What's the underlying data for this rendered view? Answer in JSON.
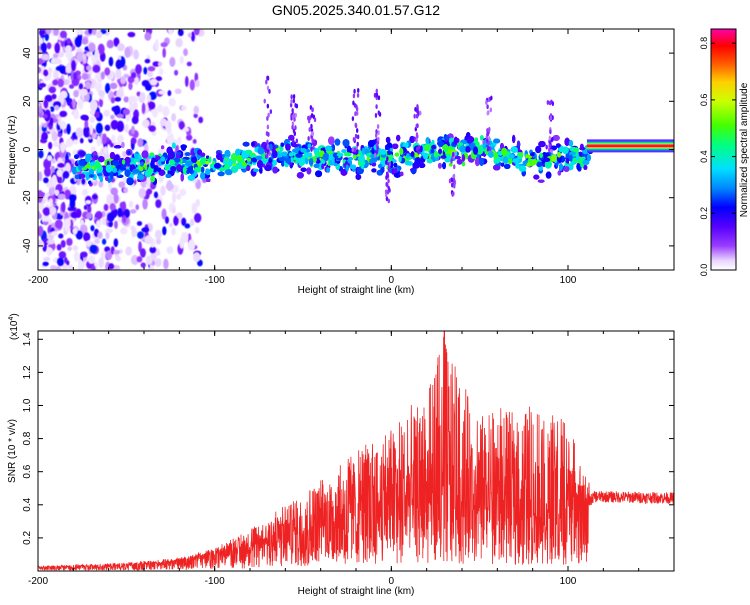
{
  "title": "GN05.2025.340.01.57.G12",
  "chart_data": [
    {
      "type": "heatmap",
      "title": "GN05.2025.340.01.57.G12",
      "xlabel": "Height of straight line (km)",
      "ylabel": "Frequency (Hz)",
      "xlim": [
        -200,
        160
      ],
      "ylim": [
        -50,
        50
      ],
      "x_ticks": [
        -200,
        -100,
        0,
        100
      ],
      "x_tick_labels": [
        "-200",
        "-100",
        "0",
        "100"
      ],
      "y_ticks": [
        -40,
        -20,
        0,
        20,
        40
      ],
      "y_tick_labels": [
        "-40",
        "-20",
        "0",
        "20",
        "40"
      ],
      "colorbar": {
        "label": "Normalized spectral amplitude",
        "range": [
          0,
          0.85
        ],
        "ticks": [
          0.0,
          0.2,
          0.4,
          0.6,
          0.8
        ],
        "tick_labels": [
          "0.0",
          "0.2",
          "0.4",
          "0.6",
          "0.8"
        ],
        "colormap": "rainbow (white-violet-blue-cyan-green-yellow-red-magenta)"
      },
      "features": {
        "scatter_noise_region_km": [
          -200,
          -120
        ],
        "main_band_center_hz": [
          [
            -175,
            -8
          ],
          [
            -150,
            -7
          ],
          [
            -120,
            -6
          ],
          [
            -100,
            -7
          ],
          [
            -80,
            -4
          ],
          [
            -60,
            -2
          ],
          [
            -40,
            -3
          ],
          [
            -20,
            -3
          ],
          [
            0,
            -3
          ],
          [
            20,
            -1
          ],
          [
            40,
            0
          ],
          [
            50,
            2
          ],
          [
            60,
            -3
          ],
          [
            80,
            -4
          ],
          [
            100,
            -3
          ],
          [
            110,
            -2
          ],
          [
            115,
            1.5
          ],
          [
            160,
            1.5
          ]
        ],
        "band_halfwidth_hz": 7,
        "steady_line_start_km": 113,
        "steady_line_freq_hz": 1.5
      }
    },
    {
      "type": "line",
      "xlabel": "Height of straight line (km)",
      "ylabel": "SNR (10 * v/v)",
      "y_scale_label": "(x10",
      "y_scale_exponent": "4",
      "xlim": [
        -200,
        160
      ],
      "ylim": [
        0,
        1.45
      ],
      "x_ticks": [
        -200,
        -100,
        0,
        100
      ],
      "x_tick_labels": [
        "-200",
        "-100",
        "0",
        "100"
      ],
      "y_ticks": [
        0.2,
        0.4,
        0.6,
        0.8,
        1.0,
        1.2,
        1.4
      ],
      "y_tick_labels": [
        "0.2",
        "0.4",
        "0.6",
        "0.8",
        "1.0",
        "1.2",
        "1.4"
      ],
      "color": "#ee2222",
      "baseline_envelope": [
        [
          -200,
          0.02
        ],
        [
          -150,
          0.03
        ],
        [
          -125,
          0.05
        ],
        [
          -100,
          0.1
        ],
        [
          -80,
          0.15
        ],
        [
          -60,
          0.2
        ],
        [
          -40,
          0.28
        ],
        [
          -20,
          0.35
        ],
        [
          0,
          0.4
        ],
        [
          20,
          0.42
        ],
        [
          40,
          0.42
        ],
        [
          60,
          0.38
        ],
        [
          80,
          0.36
        ],
        [
          100,
          0.35
        ],
        [
          110,
          0.4
        ],
        [
          115,
          0.45
        ],
        [
          160,
          0.44
        ]
      ],
      "peak_envelope": [
        [
          -200,
          0.03
        ],
        [
          -150,
          0.05
        ],
        [
          -120,
          0.08
        ],
        [
          -100,
          0.14
        ],
        [
          -80,
          0.25
        ],
        [
          -60,
          0.4
        ],
        [
          -40,
          0.55
        ],
        [
          -20,
          0.72
        ],
        [
          0,
          0.88
        ],
        [
          10,
          1.0
        ],
        [
          20,
          1.05
        ],
        [
          30,
          1.45
        ],
        [
          40,
          1.15
        ],
        [
          50,
          0.95
        ],
        [
          60,
          1.0
        ],
        [
          70,
          0.95
        ],
        [
          80,
          1.02
        ],
        [
          90,
          0.95
        ],
        [
          100,
          0.92
        ],
        [
          108,
          0.6
        ],
        [
          115,
          0.5
        ],
        [
          160,
          0.5
        ]
      ],
      "max_peak": {
        "x": 30,
        "y": 1.45
      }
    }
  ]
}
